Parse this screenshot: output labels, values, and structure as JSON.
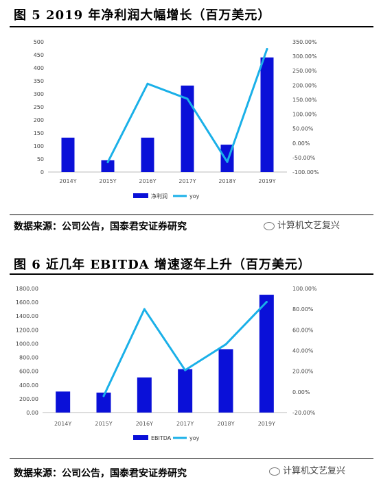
{
  "figures": [
    {
      "title": "图 5 2019 年净利润大幅增长（百万美元）",
      "source": "数据来源：公司公告，国泰君安证券研究",
      "watermark": "计算机文艺复兴"
    },
    {
      "title": "图 6 近几年 EBITDA 增速逐年上升（百万美元）",
      "source": "数据来源：公司公告，国泰君安证券研究",
      "watermark": "计算机文艺复兴"
    }
  ],
  "chart_data": [
    {
      "type": "bar",
      "categories": [
        "2014Y",
        "2015Y",
        "2016Y",
        "2017Y",
        "2018Y",
        "2019Y"
      ],
      "series": [
        {
          "name": "净利润",
          "type": "bar",
          "axis": "left",
          "color": "#0a10d8",
          "values": [
            132,
            45,
            132,
            332,
            105,
            440
          ]
        },
        {
          "name": "yoy",
          "type": "line",
          "axis": "right",
          "color": "#1ab0e8",
          "values": [
            null,
            -66,
            205,
            153,
            -65,
            325
          ]
        }
      ],
      "y_left": {
        "min": 0,
        "max": 500,
        "step": 50,
        "ticks": [
          "0",
          "50",
          "100",
          "150",
          "200",
          "250",
          "300",
          "350",
          "400",
          "450",
          "500"
        ]
      },
      "y_right": {
        "min": -100,
        "max": 350,
        "step": 50,
        "ticks": [
          "-100.00%",
          "-50.00%",
          "0.00%",
          "50.00%",
          "100.00%",
          "150.00%",
          "200.00%",
          "250.00%",
          "300.00%",
          "350.00%"
        ]
      },
      "legend_position": "bottom"
    },
    {
      "type": "bar",
      "categories": [
        "2014Y",
        "2015Y",
        "2016Y",
        "2017Y",
        "2018Y",
        "2019Y"
      ],
      "series": [
        {
          "name": "EBITDA",
          "type": "bar",
          "axis": "left",
          "color": "#0a10d8",
          "values": [
            305,
            290,
            510,
            630,
            920,
            1710
          ]
        },
        {
          "name": "yoy",
          "type": "line",
          "axis": "right",
          "color": "#1ab0e8",
          "values": [
            null,
            -4,
            80,
            21,
            46,
            87
          ]
        }
      ],
      "y_left": {
        "min": 0,
        "max": 1800,
        "step": 200,
        "ticks": [
          "0.00",
          "200.00",
          "400.00",
          "600.00",
          "800.00",
          "1000.00",
          "1200.00",
          "1400.00",
          "1600.00",
          "1800.00"
        ]
      },
      "y_right": {
        "min": -20,
        "max": 100,
        "step": 20,
        "ticks": [
          "-20.00%",
          "0.00%",
          "20.00%",
          "40.00%",
          "60.00%",
          "80.00%",
          "100.00%"
        ]
      },
      "legend_position": "bottom"
    }
  ]
}
